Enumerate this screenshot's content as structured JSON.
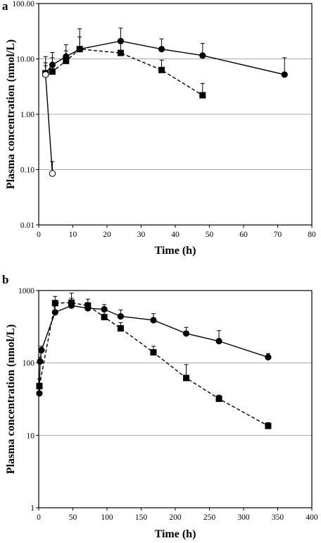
{
  "chart_data": [
    {
      "type": "scatter",
      "panel_label": "a",
      "xlabel": "Time (h)",
      "ylabel": "Plasma concentration (nmol/L)",
      "x_ticks": [
        "0",
        "10",
        "20",
        "30",
        "40",
        "50",
        "60",
        "70",
        "80"
      ],
      "y_ticks": [
        "0.01",
        "0.10",
        "1.00",
        "10.00",
        "100.00"
      ],
      "xlim": [
        0,
        80
      ],
      "ylim": [
        0.01,
        100
      ],
      "y_scale": "log",
      "grid": "horizontal",
      "series": [
        {
          "marker": "filled-circle",
          "line": "solid",
          "x": [
            2,
            4,
            8,
            12,
            24,
            36,
            48,
            72
          ],
          "y": [
            5.5,
            7.8,
            11,
            15,
            21,
            15,
            11.5,
            5.2
          ],
          "err_upper": [
            11,
            13,
            18,
            35,
            36,
            23,
            19,
            10.5
          ]
        },
        {
          "marker": "filled-square",
          "line": "dashed",
          "x": [
            2,
            4,
            8,
            12,
            24,
            36,
            48
          ],
          "y": [
            5.5,
            5.9,
            9.2,
            15,
            12.8,
            6.3,
            2.2
          ],
          "err_upper": [
            8.5,
            10.5,
            14,
            25,
            19,
            9.5,
            3.6
          ]
        },
        {
          "marker": "open-circle",
          "line": "solid",
          "x": [
            2,
            4
          ],
          "y": [
            5.2,
            0.085
          ],
          "err_upper": [
            7.5,
            0.14
          ]
        }
      ]
    },
    {
      "type": "scatter",
      "panel_label": "b",
      "xlabel": "Time (h)",
      "ylabel": "Plasma concentration (nmol/L)",
      "x_ticks": [
        "0",
        "50",
        "100",
        "150",
        "200",
        "250",
        "300",
        "350",
        "400"
      ],
      "y_ticks": [
        "1",
        "10",
        "100",
        "1000"
      ],
      "xlim": [
        0,
        400
      ],
      "ylim": [
        1,
        1000
      ],
      "y_scale": "log",
      "grid": "horizontal",
      "series": [
        {
          "marker": "filled-circle",
          "line": "solid",
          "x": [
            1,
            2,
            4,
            24,
            48,
            72,
            96,
            120,
            168,
            216,
            264,
            336
          ],
          "y": [
            38,
            105,
            150,
            500,
            620,
            570,
            550,
            440,
            390,
            255,
            200,
            120
          ],
          "err_upper": [
            45,
            120,
            170,
            640,
            780,
            680,
            640,
            540,
            480,
            310,
            280,
            135
          ]
        },
        {
          "marker": "filled-square",
          "line": "dashed",
          "x": [
            1,
            24,
            48,
            72,
            96,
            120,
            168,
            216,
            264,
            336
          ],
          "y": [
            48,
            670,
            680,
            620,
            430,
            300,
            140,
            62,
            32,
            13.5
          ],
          "err_upper": [
            60,
            830,
            920,
            760,
            520,
            360,
            170,
            95,
            36,
            15
          ]
        }
      ]
    }
  ]
}
